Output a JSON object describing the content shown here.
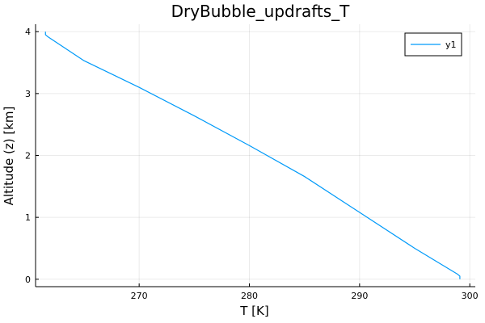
{
  "chart_data": {
    "type": "line",
    "title": "DryBubble_updrafts_T",
    "xlabel": "T [K]",
    "ylabel": "Altitude (z) [km]",
    "xlim": [
      260.6,
      300.5
    ],
    "ylim": [
      -0.12,
      4.12
    ],
    "xticks": [
      270,
      280,
      290,
      300
    ],
    "yticks": [
      0,
      1,
      2,
      3,
      4
    ],
    "grid": true,
    "legend_position": "top-right",
    "series": [
      {
        "name": "y1",
        "color": "#009af9",
        "x": [
          299.1,
          299.1,
          298.9,
          295.0,
          290.0,
          285.0,
          280.0,
          275.0,
          270.0,
          265.0,
          261.7,
          261.5,
          261.5
        ],
        "y": [
          0.0,
          0.05,
          0.08,
          0.5,
          1.08,
          1.66,
          2.16,
          2.64,
          3.1,
          3.53,
          3.92,
          3.95,
          4.0
        ]
      }
    ]
  }
}
